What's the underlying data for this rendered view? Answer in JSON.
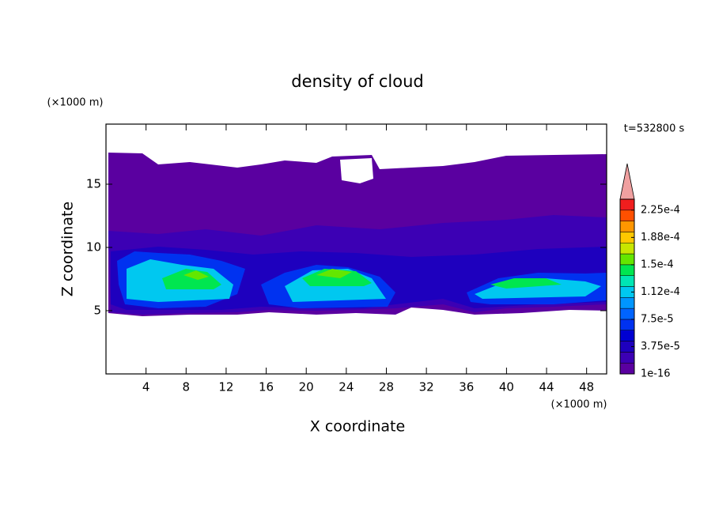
{
  "chart_data": {
    "type": "contour",
    "title": "density of cloud",
    "x_label": "X coordinate",
    "y_label": "Z coordinate",
    "x_unit": "(×1000 m)",
    "y_unit": "(×1000 m)",
    "time_label": "t=532800 s",
    "xlim": [
      0,
      50
    ],
    "ylim": [
      0,
      19.75
    ],
    "xticks": [
      4,
      8,
      12,
      16,
      20,
      24,
      28,
      32,
      36,
      40,
      44,
      48
    ],
    "yticks": [
      5,
      10,
      15
    ],
    "colorbar": {
      "colors": [
        "#5a00a0",
        "#3c00b4",
        "#1e00be",
        "#0000d2",
        "#0032f0",
        "#0064ff",
        "#0096ff",
        "#00c8f0",
        "#00e6b4",
        "#00e650",
        "#64e600",
        "#c8e600",
        "#ffc800",
        "#ff9600",
        "#ff5000",
        "#f01e1e"
      ],
      "extend_color": "#f0a0a0",
      "ticks": [
        {
          "value": 1e-16,
          "label": "1e-16"
        },
        {
          "value": 3.75e-05,
          "label": "3.75e-5"
        },
        {
          "value": 7.5e-05,
          "label": "7.5e-5"
        },
        {
          "value": 0.0001125,
          "label": "1.12e-4"
        },
        {
          "value": 0.00015,
          "label": "1.5e-4"
        },
        {
          "value": 0.0001875,
          "label": "1.88e-4"
        },
        {
          "value": 0.000225,
          "label": "2.25e-4"
        }
      ],
      "lim": [
        0,
        0.00024
      ]
    }
  }
}
